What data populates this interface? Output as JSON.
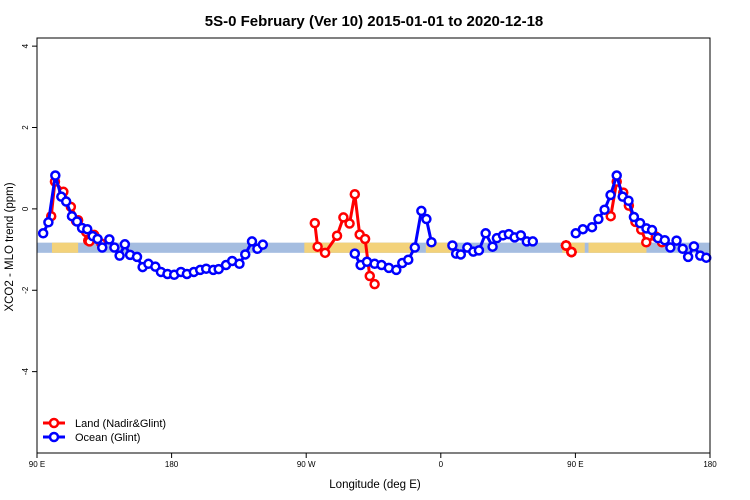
{
  "chart_data": {
    "type": "line",
    "title": "5S-0 February (Ver 10)   2015-01-01 to 2020-12-18",
    "xlabel": "Longitude (deg E)",
    "ylabel": "XCO2 - MLO trend (ppm)",
    "xlim": [
      90,
      450
    ],
    "ylim": [
      -6,
      4.2
    ],
    "x_ticks": [
      {
        "value": 90,
        "label": "90 E"
      },
      {
        "value": 162,
        "label": "180"
      },
      {
        "value": 234,
        "label": "90 W"
      },
      {
        "value": 306,
        "label": "0"
      },
      {
        "value": 378,
        "label": "90 E"
      },
      {
        "value": 450,
        "label": "180"
      }
    ],
    "y_ticks": [
      4,
      2,
      0,
      -2,
      -4
    ],
    "grid": false,
    "legend_position": "bottom-left",
    "colors": {
      "land": "#ff0000",
      "ocean": "#0000ff",
      "band_ocean": "#a5bde0",
      "band_land": "#f3d27a"
    },
    "land_ocean_band": {
      "y_range": [
        -1.08,
        -0.83
      ],
      "land_x_ranges": [
        [
          98,
          112
        ],
        [
          233,
          240
        ],
        [
          240,
          293
        ],
        [
          298,
          315
        ],
        [
          371,
          383
        ],
        [
          385,
          400
        ],
        [
          400,
          416
        ]
      ]
    },
    "series": [
      {
        "name": "Land (Nadir&Glint)",
        "color": "#ff0000",
        "points": [
          [
            97.6,
            -0.18
          ],
          [
            99.6,
            0.67
          ],
          [
            104.1,
            0.42
          ],
          [
            108.1,
            0.05
          ],
          [
            112.0,
            -0.28
          ],
          [
            116.3,
            -0.57
          ],
          [
            117.4,
            -0.78
          ],
          [
            120.6,
            -0.64
          ],
          [
            124.4,
            -0.85
          ],
          [
            238.6,
            -0.35
          ],
          [
            240.1,
            -0.93
          ],
          [
            244.1,
            -1.08
          ],
          [
            250.5,
            -0.66
          ],
          [
            253.9,
            -0.21
          ],
          [
            257.2,
            -0.36
          ],
          [
            260.0,
            0.36
          ],
          [
            262.6,
            -0.63
          ],
          [
            265.5,
            -0.74
          ],
          [
            268.0,
            -1.65
          ],
          [
            270.6,
            -1.85
          ],
          [
            118.1,
            -0.8
          ],
          [
            110.9,
            -0.3
          ],
          [
            373.0,
            -0.9
          ],
          [
            375.9,
            -1.06
          ],
          [
            373.0,
            -0.9
          ],
          [
            375.9,
            -1.06
          ],
          [
            373.0,
            -0.9
          ],
          [
            375.9,
            -1.06
          ],
          [
            373.0,
            -0.9
          ],
          [
            375.9,
            -1.06
          ],
          [
            373.0,
            -0.9
          ],
          [
            375.9,
            -1.06
          ],
          [
            373.0,
            -0.9
          ],
          [
            375.9,
            -1.06
          ],
          [
            396.9,
            -0.18
          ],
          [
            400.1,
            0.67
          ],
          [
            403.6,
            0.4
          ],
          [
            406.6,
            0.08
          ],
          [
            410.1,
            -0.32
          ],
          [
            413.2,
            -0.51
          ],
          [
            415.9,
            -0.82
          ],
          [
            421.0,
            -0.68
          ],
          [
            424.3,
            -0.82
          ]
        ]
      },
      {
        "name": "Ocean (Glint)",
        "color": "#0000ff",
        "points": [
          [
            93.3,
            -0.6
          ],
          [
            96.1,
            -0.33
          ],
          [
            99.8,
            0.82
          ],
          [
            103.0,
            0.3
          ],
          [
            105.6,
            0.18
          ],
          [
            108.7,
            -0.18
          ],
          [
            111.4,
            -0.31
          ],
          [
            114.1,
            -0.47
          ],
          [
            116.9,
            -0.5
          ],
          [
            119.8,
            -0.67
          ],
          [
            122.4,
            -0.74
          ],
          [
            124.9,
            -0.95
          ],
          [
            128.7,
            -0.75
          ],
          [
            131.4,
            -0.95
          ],
          [
            134.2,
            -1.15
          ],
          [
            137.0,
            -0.87
          ],
          [
            139.8,
            -1.13
          ],
          [
            143.5,
            -1.18
          ],
          [
            146.5,
            -1.43
          ],
          [
            149.6,
            -1.35
          ],
          [
            153.3,
            -1.42
          ],
          [
            156.3,
            -1.55
          ],
          [
            159.8,
            -1.6
          ],
          [
            163.4,
            -1.62
          ],
          [
            167.0,
            -1.55
          ],
          [
            170.2,
            -1.6
          ],
          [
            173.9,
            -1.55
          ],
          [
            177.3,
            -1.5
          ],
          [
            180.5,
            -1.47
          ],
          [
            184.3,
            -1.5
          ],
          [
            187.2,
            -1.48
          ],
          [
            191.1,
            -1.38
          ],
          [
            194.4,
            -1.28
          ],
          [
            198.3,
            -1.35
          ],
          [
            201.4,
            -1.12
          ],
          [
            205.0,
            -0.8
          ],
          [
            207.9,
            -0.98
          ],
          [
            210.8,
            -0.88
          ],
          [
            260.0,
            -1.1
          ],
          [
            263.1,
            -1.38
          ],
          [
            266.5,
            -1.3
          ],
          [
            270.6,
            -1.35
          ],
          [
            274.3,
            -1.38
          ],
          [
            278.2,
            -1.45
          ],
          [
            282.2,
            -1.5
          ],
          [
            285.4,
            -1.33
          ],
          [
            288.6,
            -1.25
          ],
          [
            292.1,
            -0.95
          ],
          [
            295.6,
            -0.05
          ],
          [
            298.3,
            -0.25
          ],
          [
            301.0,
            -0.82
          ],
          [
            312.2,
            -0.9
          ],
          [
            314.2,
            -1.1
          ],
          [
            316.7,
            -1.12
          ],
          [
            320.2,
            -0.95
          ],
          [
            323.4,
            -1.05
          ],
          [
            326.4,
            -1.02
          ],
          [
            330.0,
            -0.6
          ],
          [
            333.7,
            -0.93
          ],
          [
            336.0,
            -0.72
          ],
          [
            339.3,
            -0.65
          ],
          [
            342.4,
            -0.62
          ],
          [
            345.5,
            -0.7
          ],
          [
            348.8,
            -0.65
          ],
          [
            352.0,
            -0.8
          ],
          [
            355.2,
            -0.8
          ],
          [
            378.2,
            -0.6
          ],
          [
            382.0,
            -0.5
          ],
          [
            386.9,
            -0.45
          ],
          [
            390.3,
            -0.25
          ],
          [
            393.6,
            -0.02
          ],
          [
            396.8,
            0.34
          ],
          [
            400.1,
            0.82
          ],
          [
            403.3,
            0.3
          ],
          [
            406.4,
            0.2
          ],
          [
            409.3,
            -0.2
          ],
          [
            412.6,
            -0.35
          ],
          [
            416.0,
            -0.48
          ],
          [
            419.0,
            -0.52
          ],
          [
            422.2,
            -0.72
          ],
          [
            425.8,
            -0.77
          ],
          [
            428.8,
            -0.95
          ],
          [
            432.1,
            -0.78
          ],
          [
            435.4,
            -0.98
          ],
          [
            438.3,
            -1.18
          ],
          [
            441.4,
            -0.92
          ],
          [
            444.8,
            -1.15
          ],
          [
            448.0,
            -1.2
          ]
        ]
      }
    ]
  }
}
